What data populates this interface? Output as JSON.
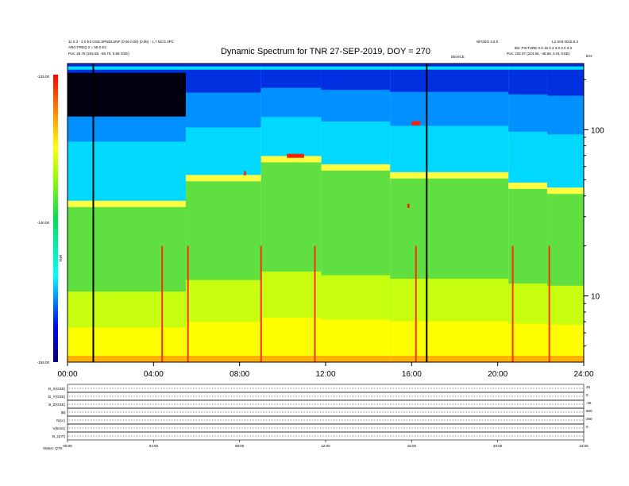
{
  "header": {
    "title": "Dynamic Spectrum for TNR 27-SEP-2019, DOY = 270",
    "left_line1": "11 0.3 - 2.0 E3 GSE:SPNDLSNP (0.06 0.00) (0.0b) - 1.7 NCG 3PC",
    "left_line2": "ARG:FREQ 2 = 50.0 E2",
    "left_line3": "Pos: 25.76 (234.68, -85.70, 5.69 GSE)",
    "right_line1": "NFOEO 3.5.0",
    "right_line2": "L2.S03 0015.5.3",
    "right_line3": "BS: PICTURE 0.0 16 0.3 3.0 0.0 3.3",
    "right_line4": "Pos: 232.07 (224.56, -48.68, 5.01 GSE)",
    "marker_label": "DEVICE",
    "corner_label": "kHz"
  },
  "colorbar": {
    "ticks": [
      "-125.00",
      "-140.00",
      "-155.00"
    ],
    "label": "TNR"
  },
  "chart_data": {
    "type": "heatmap",
    "title": "Dynamic Spectrum for TNR 27-SEP-2019, DOY = 270",
    "x_ticks": [
      "00:00",
      "04:00",
      "08:00",
      "12:00",
      "16:00",
      "20:00",
      "24:00"
    ],
    "x_range_hours": [
      0,
      24
    ],
    "y_scale": "log",
    "y_unit": "kHz",
    "y_ticks": [
      10,
      100
    ],
    "y_range_khz": [
      4,
      250
    ],
    "color_range_db": [
      -155,
      -125
    ],
    "vertical_markers_hours": [
      1.2,
      16.7
    ],
    "background_levels": [
      {
        "start_h": 0.0,
        "end_h": 5.5,
        "boundary_khz": 35
      },
      {
        "start_h": 5.5,
        "end_h": 9.0,
        "boundary_khz": 50
      },
      {
        "start_h": 9.0,
        "end_h": 11.8,
        "boundary_khz": 65
      },
      {
        "start_h": 11.8,
        "end_h": 15.0,
        "boundary_khz": 58
      },
      {
        "start_h": 15.0,
        "end_h": 20.5,
        "boundary_khz": 52
      },
      {
        "start_h": 20.5,
        "end_h": 22.3,
        "boundary_khz": 45
      },
      {
        "start_h": 22.3,
        "end_h": 24.0,
        "boundary_khz": 42
      }
    ],
    "bursts_hours": [
      4.4,
      5.6,
      9.0,
      11.5,
      16.2,
      20.7,
      22.4
    ],
    "red_bands": [
      {
        "start_h": 10.2,
        "end_h": 11.0,
        "khz": 70
      },
      {
        "start_h": 8.2,
        "end_h": 8.3,
        "khz": 55
      },
      {
        "start_h": 16.0,
        "end_h": 16.4,
        "khz": 110
      },
      {
        "start_h": 15.8,
        "end_h": 15.9,
        "khz": 35
      }
    ],
    "bottom_panel": {
      "row_labels": [
        "B_X(GSE)",
        "B_Y(GSE)",
        "B_Z(GSE)",
        "|B|",
        "N(cc)",
        "V(km/s)",
        "B_z(nT)"
      ],
      "right_ticks": [
        "25",
        "0",
        "-25",
        "500",
        "250",
        "0"
      ],
      "x_ticks": [
        "00:00",
        "04:00",
        "08:00",
        "12:00",
        "16:00",
        "20:00",
        "24:00"
      ],
      "footer_label": "Status: QTS"
    }
  }
}
